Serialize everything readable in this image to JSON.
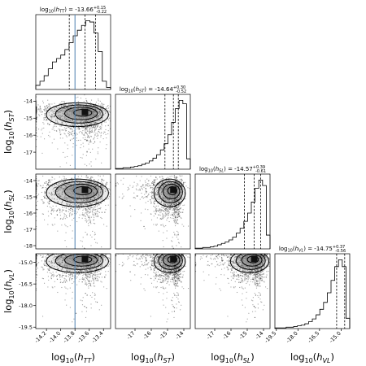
{
  "chart_data": {
    "type": "corner",
    "parameters": [
      {
        "id": "TT",
        "label": "log10(hTT)",
        "range": [
          -14.35,
          -13.3
        ],
        "ticks": [
          -14.2,
          -14.0,
          -13.8,
          -13.6,
          -13.4
        ],
        "tick_labels": [
          "-14.2",
          "-14.0",
          "-13.8",
          "-13.6",
          "-13.4"
        ],
        "title": "log10(hTT) = -13.66 +0.15 -0.22",
        "median": -13.66,
        "err_plus": 0.15,
        "err_minus": 0.22,
        "truth": -13.8,
        "hist": [
          0.06,
          0.12,
          0.2,
          0.3,
          0.4,
          0.45,
          0.5,
          0.58,
          0.68,
          0.78,
          0.86,
          0.93,
          1.0,
          0.98,
          0.82,
          0.55,
          0.12,
          0.03
        ]
      },
      {
        "id": "ST",
        "label": "log10(hST)",
        "range": [
          -18.2,
          -13.6
        ],
        "ticks": [
          -17,
          -16,
          -15,
          -14
        ],
        "tick_labels": [
          "-17",
          "-16",
          "-15",
          "-14"
        ],
        "title": "log10(hST) = -14.64 +0.30 -0.52",
        "median": -14.64,
        "err_plus": 0.3,
        "err_minus": 0.52,
        "hist": [
          0.01,
          0.01,
          0.02,
          0.02,
          0.03,
          0.04,
          0.05,
          0.07,
          0.09,
          0.12,
          0.16,
          0.21,
          0.28,
          0.37,
          0.5,
          0.68,
          0.88,
          1.0,
          0.95,
          0.15
        ]
      },
      {
        "id": "SL",
        "label": "log10(hSL)",
        "range": [
          -18.2,
          -13.6
        ],
        "ticks": [
          -17,
          -16,
          -15,
          -14
        ],
        "tick_labels": [
          "-17",
          "-16",
          "-15",
          "-14"
        ],
        "title": "log10(hSL) = -14.57 +0.39 -0.61",
        "median": -14.57,
        "err_plus": 0.39,
        "err_minus": 0.61,
        "hist": [
          0.01,
          0.01,
          0.02,
          0.02,
          0.03,
          0.04,
          0.06,
          0.08,
          0.1,
          0.13,
          0.17,
          0.23,
          0.3,
          0.4,
          0.52,
          0.68,
          0.88,
          1.0,
          0.92,
          0.2
        ]
      },
      {
        "id": "VL",
        "label": "log10(hVL)",
        "range": [
          -19.6,
          -14.4
        ],
        "ticks": [
          -19.5,
          -18.0,
          -16.5,
          -15.0
        ],
        "tick_labels": [
          "-19.5",
          "-18.0",
          "-16.5",
          "-15.0"
        ],
        "title": "log10(hVL) = -14.75 +0.37 -0.56",
        "median": -14.75,
        "err_plus": 0.37,
        "err_minus": 0.56,
        "hist": [
          0.01,
          0.01,
          0.01,
          0.02,
          0.02,
          0.03,
          0.04,
          0.05,
          0.07,
          0.1,
          0.14,
          0.2,
          0.28,
          0.38,
          0.52,
          0.7,
          0.9,
          1.0,
          0.9,
          0.15
        ]
      }
    ],
    "ylabels": {
      "ST": {
        "range": [
          -18.0,
          -13.6
        ],
        "ticks": [
          -17,
          -16,
          -15,
          -14
        ],
        "tick_labels": [
          "-17",
          "-16",
          "-15",
          "-14"
        ]
      },
      "SL": {
        "range": [
          -18.2,
          -13.6
        ],
        "ticks": [
          -18,
          -17,
          -16,
          -15,
          -14
        ],
        "tick_labels": [
          "-18",
          "-17",
          "-16",
          "-15",
          "-14"
        ]
      },
      "VL": {
        "range": [
          -19.6,
          -14.4
        ],
        "ticks": [
          -19.5,
          -18.0,
          -16.5,
          -15.0
        ],
        "tick_labels": [
          "-19.5",
          "-18.0",
          "-16.5",
          "-15.0"
        ]
      }
    },
    "truth_color": "#4c7fb0",
    "hist_color": "#000000",
    "quantile_style": "dashed"
  }
}
